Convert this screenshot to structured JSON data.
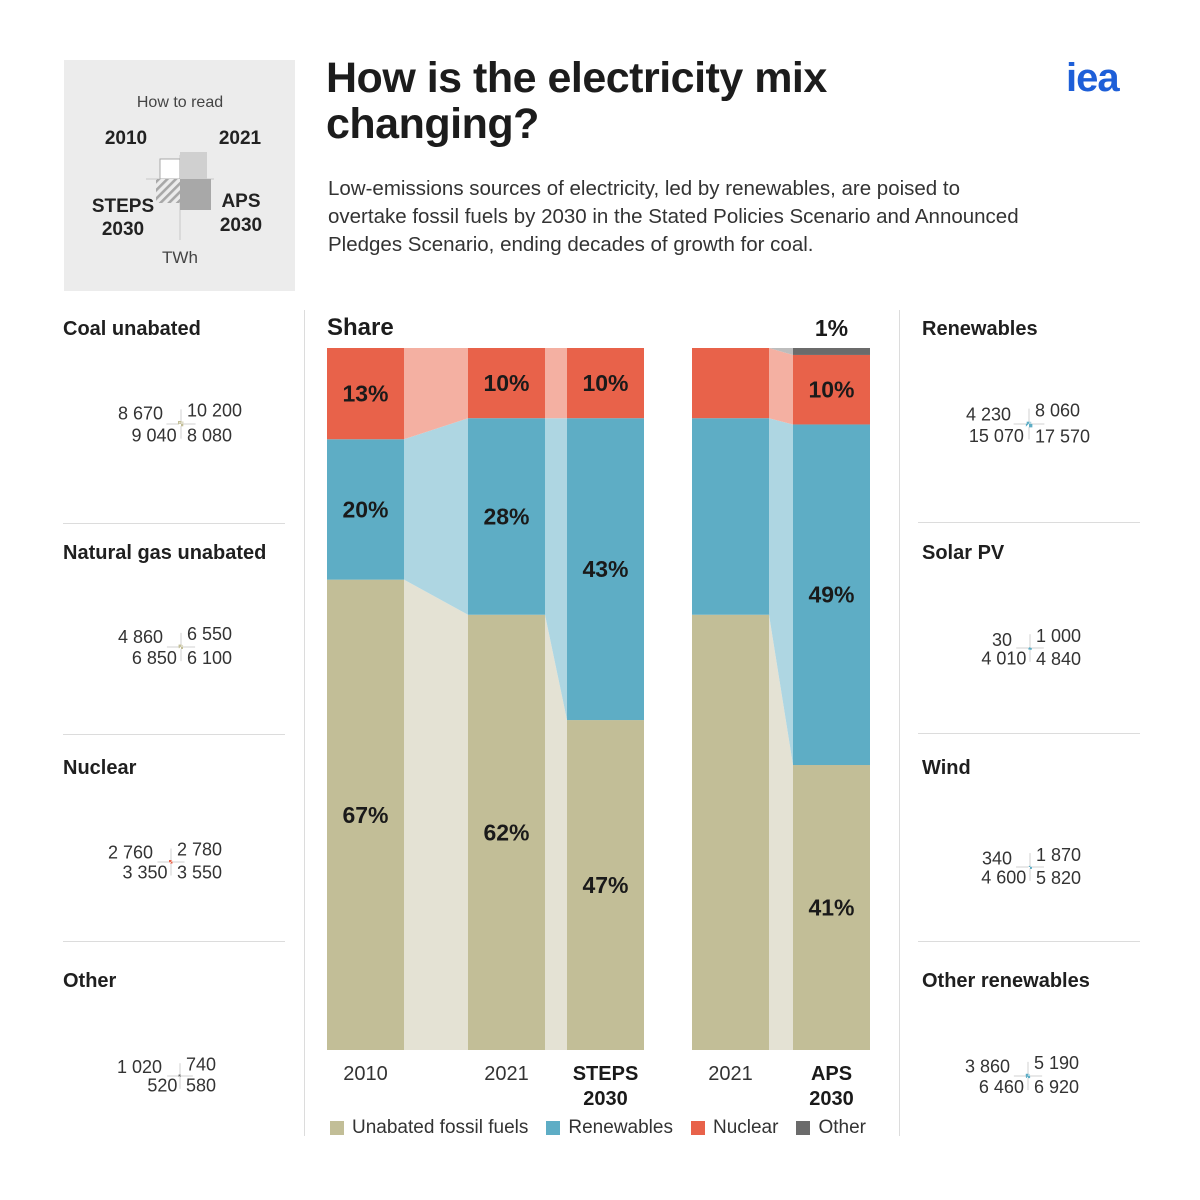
{
  "header": {
    "title": "How is the electricity mix changing?",
    "subtitle": "Low-emissions sources of electricity, led by renewables, are poised to overtake fossil fuels by 2030 in the Stated Policies Scenario and Announced Pledges Scenario, ending decades of growth for coal.",
    "logo": "iea"
  },
  "how_to_read": {
    "title": "How to read",
    "top_left": "2010",
    "top_right": "2021",
    "bottom_left": "STEPS 2030",
    "bottom_right": "APS 2030",
    "unit": "TWh"
  },
  "colors": {
    "fossil": "#c2be97",
    "fossil_light": "#dedbc8",
    "fossil_band": "#e4e2d4",
    "renewables": "#5eadc5",
    "renewables_light": "#aed6e2",
    "nuclear": "#e8624a",
    "nuclear_light": "#f4b0a2",
    "other": "#6b6b6b",
    "other_light": "#b8b8b8",
    "grey_howto": "#a8a8a8",
    "grey_howto_light": "#d0d0d0"
  },
  "left_panels": [
    {
      "title": "Coal unabated",
      "v2010": 8670,
      "v2021": 10200,
      "steps": 9040,
      "aps": 8080,
      "labels": {
        "v2010": "8 670",
        "v2021": "10 200",
        "steps": "9 040",
        "aps": "8 080"
      },
      "color": "fossil"
    },
    {
      "title": "Natural gas unabated",
      "v2010": 4860,
      "v2021": 6550,
      "steps": 6850,
      "aps": 6100,
      "labels": {
        "v2010": "4 860",
        "v2021": "6 550",
        "steps": "6 850",
        "aps": "6 100"
      },
      "color": "fossil"
    },
    {
      "title": "Nuclear",
      "v2010": 2760,
      "v2021": 2780,
      "steps": 3350,
      "aps": 3550,
      "labels": {
        "v2010": "2 760",
        "v2021": "2 780",
        "steps": "3 350",
        "aps": "3 550"
      },
      "color": "nuclear"
    },
    {
      "title": "Other",
      "v2010": 1020,
      "v2021": 740,
      "steps": 520,
      "aps": 580,
      "labels": {
        "v2010": "1 020",
        "v2021": "740",
        "steps": "520",
        "aps": "580"
      },
      "color": "other"
    }
  ],
  "right_panels": [
    {
      "title": "Renewables",
      "v2010": 4230,
      "v2021": 8060,
      "steps": 15070,
      "aps": 17570,
      "labels": {
        "v2010": "4 230",
        "v2021": "8 060",
        "steps": "15 070",
        "aps": "17 570"
      },
      "color": "renewables"
    },
    {
      "title": "Solar PV",
      "v2010": 30,
      "v2021": 1000,
      "steps": 4010,
      "aps": 4840,
      "labels": {
        "v2010": "30",
        "v2021": "1 000",
        "steps": "4 010",
        "aps": "4 840"
      },
      "color": "renewables"
    },
    {
      "title": "Wind",
      "v2010": 340,
      "v2021": 1870,
      "steps": 4600,
      "aps": 5820,
      "labels": {
        "v2010": "340",
        "v2021": "1 870",
        "steps": "4 600",
        "aps": "5 820"
      },
      "color": "renewables"
    },
    {
      "title": "Other renewables",
      "v2010": 3860,
      "v2021": 5190,
      "steps": 6460,
      "aps": 6920,
      "labels": {
        "v2010": "3 860",
        "v2021": "5 190",
        "steps": "6 460",
        "aps": "6 920"
      },
      "color": "renewables"
    }
  ],
  "chart_data": {
    "type": "bar",
    "title": "Share",
    "stacked": true,
    "unit": "%",
    "categories": [
      "2010",
      "2021",
      "STEPS 2030",
      "2021",
      "APS 2030"
    ],
    "series": [
      {
        "name": "Unabated fossil fuels",
        "values": [
          67,
          62,
          47,
          62,
          41
        ]
      },
      {
        "name": "Renewables",
        "values": [
          20,
          28,
          43,
          28,
          49
        ]
      },
      {
        "name": "Nuclear",
        "values": [
          13,
          10,
          10,
          10,
          10
        ]
      },
      {
        "name": "Other",
        "values": [
          0,
          0,
          0,
          0,
          1
        ]
      }
    ],
    "labels": {
      "fossil": [
        "67%",
        "62%",
        "47%",
        "",
        "41%"
      ],
      "renewables": [
        "20%",
        "28%",
        "43%",
        "",
        "49%"
      ],
      "nuclear": [
        "13%",
        "10%",
        "10%",
        "",
        "10%"
      ],
      "other": [
        "",
        "",
        "",
        "",
        "1%"
      ]
    },
    "ylim": [
      0,
      100
    ]
  },
  "legend": [
    {
      "label": "Unabated fossil fuels",
      "color": "fossil"
    },
    {
      "label": "Renewables",
      "color": "renewables"
    },
    {
      "label": "Nuclear",
      "color": "nuclear"
    },
    {
      "label": "Other",
      "color": "other"
    }
  ]
}
